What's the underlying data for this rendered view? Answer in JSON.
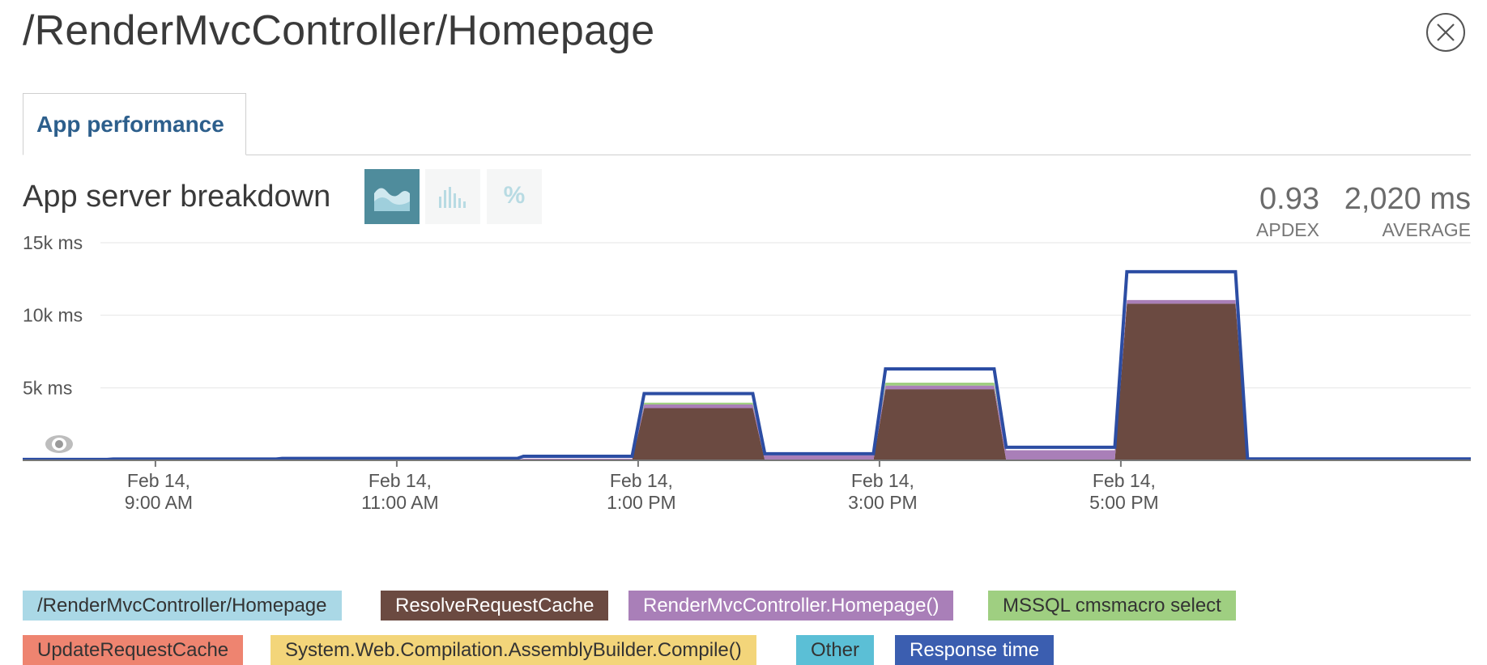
{
  "page": {
    "title": "/RenderMvcController/Homepage"
  },
  "tabs": [
    {
      "label": "App performance",
      "active": true
    }
  ],
  "section": {
    "title": "App server breakdown"
  },
  "view_toggles": [
    {
      "name": "area-chart-icon",
      "active": true
    },
    {
      "name": "bar-chart-icon",
      "active": false
    },
    {
      "name": "percent-icon",
      "label": "%",
      "active": false
    }
  ],
  "stats": {
    "apdex": {
      "value": "0.93",
      "label": "APDEX"
    },
    "average": {
      "value": "2,020 ms",
      "label": "AVERAGE"
    }
  },
  "colors": {
    "ResolveRequestCache": "#6b4a41",
    "RenderMvcController.Homepage()": "#a97fb8",
    "MSSQL cmsmacro select": "#9fcf81",
    "Response time": "#2c4da3",
    "/RenderMvcController/Homepage": "#aad8e6",
    "grid": "#e6e6e6"
  },
  "chart_data": {
    "type": "area",
    "title": "App server breakdown",
    "y_unit": "ms",
    "ylim": [
      0,
      15000
    ],
    "y_ticks": [
      {
        "value": 15000,
        "label": "15k ms"
      },
      {
        "value": 10000,
        "label": "10k ms"
      },
      {
        "value": 5000,
        "label": "5k ms"
      }
    ],
    "x_range_hours": [
      7.9,
      19.9
    ],
    "x_ticks": [
      {
        "hour": 9,
        "line1": "Feb 14,",
        "line2": "9:00 AM"
      },
      {
        "hour": 11,
        "line1": "Feb 14,",
        "line2": "11:00 AM"
      },
      {
        "hour": 13,
        "line1": "Feb 14,",
        "line2": "1:00 PM"
      },
      {
        "hour": 15,
        "line1": "Feb 14,",
        "line2": "3:00 PM"
      },
      {
        "hour": 17,
        "line1": "Feb 14,",
        "line2": "5:00 PM"
      }
    ],
    "stacked_series": [
      {
        "name": "ResolveRequestCache",
        "x": [
          7.9,
          12.95,
          13.05,
          13.95,
          14.05,
          14.95,
          15.05,
          15.95,
          16.05,
          16.95,
          17.05,
          17.95,
          18.05,
          19.9
        ],
        "values": [
          0,
          0,
          3600,
          3600,
          0,
          0,
          4900,
          4900,
          0,
          0,
          10800,
          10800,
          0,
          0
        ]
      },
      {
        "name": "RenderMvcController.Homepage()",
        "x": [
          7.9,
          12.0,
          12.05,
          12.95,
          13.05,
          13.95,
          14.05,
          14.95,
          15.05,
          15.95,
          16.05,
          16.95,
          17.05,
          17.95,
          18.05,
          19.9
        ],
        "values": [
          40,
          40,
          120,
          120,
          250,
          250,
          350,
          350,
          250,
          250,
          700,
          700,
          250,
          250,
          40,
          40
        ]
      },
      {
        "name": "MSSQL cmsmacro select",
        "x": [
          7.9,
          12.95,
          13.05,
          13.95,
          14.05,
          14.95,
          15.05,
          15.95,
          16.05,
          17.95,
          18.05,
          19.9
        ],
        "values": [
          0,
          0,
          120,
          120,
          0,
          0,
          200,
          200,
          0,
          0,
          0,
          0
        ]
      }
    ],
    "response_time": {
      "name": "Response time",
      "x": [
        7.9,
        8.6,
        8.65,
        10.0,
        10.05,
        12.0,
        12.05,
        12.95,
        13.05,
        13.95,
        14.05,
        14.95,
        15.05,
        15.95,
        16.05,
        16.95,
        17.05,
        17.95,
        18.05,
        19.9
      ],
      "values": [
        60,
        60,
        90,
        90,
        130,
        130,
        280,
        280,
        4600,
        4600,
        450,
        450,
        6300,
        6300,
        900,
        900,
        13000,
        13000,
        100,
        100
      ]
    }
  },
  "legend": [
    {
      "label": "/RenderMvcController/Homepage",
      "bg": "#aad8e6",
      "fg": "#333333"
    },
    {
      "label": "ResolveRequestCache",
      "bg": "#6b4a41",
      "fg": "#ffffff"
    },
    {
      "label": "RenderMvcController.Homepage()",
      "bg": "#a97fb8",
      "fg": "#ffffff"
    },
    {
      "label": "MSSQL cmsmacro select",
      "bg": "#9fcf81",
      "fg": "#333333"
    },
    {
      "label": "UpdateRequestCache",
      "bg": "#ee8470",
      "fg": "#333333"
    },
    {
      "label": "System.Web.Compilation.AssemblyBuilder.Compile()",
      "bg": "#f3d57a",
      "fg": "#333333"
    },
    {
      "label": "Other",
      "bg": "#5bbfd6",
      "fg": "#333333"
    },
    {
      "label": "Response time",
      "bg": "#3b5eb0",
      "fg": "#ffffff"
    }
  ]
}
